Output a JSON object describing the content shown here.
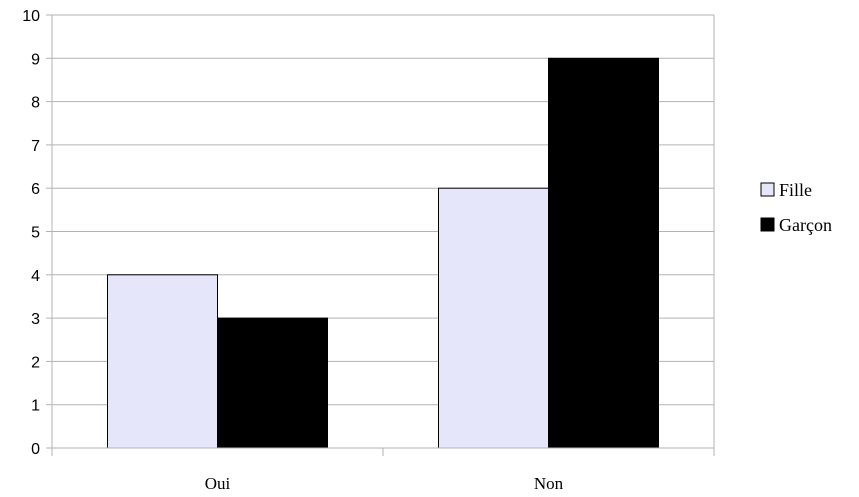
{
  "chart_data": {
    "type": "bar",
    "categories": [
      "Oui",
      "Non"
    ],
    "series": [
      {
        "name": "Fille",
        "values": [
          4,
          6
        ],
        "color": "#e6e6fa"
      },
      {
        "name": "Garçon",
        "values": [
          3,
          9
        ],
        "color": "#000000"
      }
    ],
    "ylim": [
      0,
      10
    ],
    "yticks": [
      "0",
      "1",
      "2",
      "3",
      "4",
      "5",
      "6",
      "7",
      "8",
      "9",
      "10"
    ],
    "grid": true,
    "legend_position": "right"
  }
}
